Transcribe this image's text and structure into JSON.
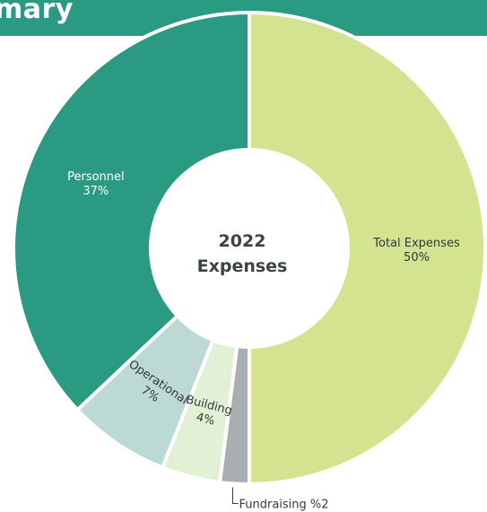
{
  "banner": {
    "text": "mary"
  },
  "colors": {
    "banner": "#2a9a82",
    "background": "#ffffff"
  },
  "chart_data": {
    "type": "pie",
    "subtype": "donut",
    "center_label": [
      "2022",
      "Expenses"
    ],
    "slices": [
      {
        "label": "Total Expenses",
        "value": 50,
        "display": "50%",
        "color": "#d3e38f",
        "label_color": "#2f3b3a"
      },
      {
        "label": "Fundraising",
        "value": 2,
        "display": "%2",
        "color": "#a9afb0",
        "label_color": "#2f3b3a",
        "callout": true
      },
      {
        "label": "Building",
        "value": 4,
        "display": "4%",
        "color": "#e2f0d5",
        "label_color": "#2f3b3a"
      },
      {
        "label": "Operational",
        "value": 7,
        "display": "7%",
        "color": "#bdd9d4",
        "label_color": "#2f3b3a"
      },
      {
        "label": "Personnel",
        "value": 37,
        "display": "37%",
        "color": "#2a9a82",
        "label_color": "#ffffff"
      }
    ]
  }
}
